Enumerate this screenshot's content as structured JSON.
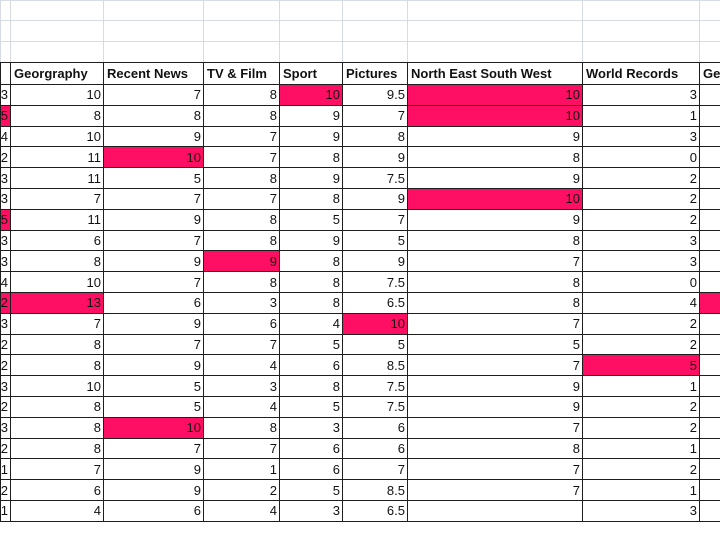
{
  "sheet": {
    "headers": [
      "",
      "Georgraphy",
      "Recent News",
      "TV & Film",
      "Sport",
      "Pictures",
      "North East South West",
      "World Records",
      "Ge"
    ],
    "rows": [
      [
        "3",
        "10",
        "7",
        "8",
        "10",
        "9.5",
        "10",
        "3",
        ""
      ],
      [
        "5",
        "8",
        "8",
        "8",
        "9",
        "7",
        "10",
        "1",
        ""
      ],
      [
        "4",
        "10",
        "9",
        "7",
        "9",
        "8",
        "9",
        "3",
        ""
      ],
      [
        "2",
        "11",
        "10",
        "7",
        "8",
        "9",
        "8",
        "0",
        ""
      ],
      [
        "3",
        "11",
        "5",
        "8",
        "9",
        "7.5",
        "9",
        "2",
        ""
      ],
      [
        "3",
        "7",
        "7",
        "7",
        "8",
        "9",
        "10",
        "2",
        ""
      ],
      [
        "5",
        "11",
        "9",
        "8",
        "5",
        "7",
        "9",
        "2",
        ""
      ],
      [
        "3",
        "6",
        "7",
        "8",
        "9",
        "5",
        "8",
        "3",
        ""
      ],
      [
        "3",
        "8",
        "9",
        "9",
        "8",
        "9",
        "7",
        "3",
        ""
      ],
      [
        "4",
        "10",
        "7",
        "8",
        "8",
        "7.5",
        "8",
        "0",
        ""
      ],
      [
        "2",
        "13",
        "6",
        "3",
        "8",
        "6.5",
        "8",
        "4",
        ""
      ],
      [
        "3",
        "7",
        "9",
        "6",
        "4",
        "10",
        "7",
        "2",
        ""
      ],
      [
        "2",
        "8",
        "7",
        "7",
        "5",
        "5",
        "5",
        "2",
        ""
      ],
      [
        "2",
        "8",
        "9",
        "4",
        "6",
        "8.5",
        "7",
        "5",
        ""
      ],
      [
        "3",
        "10",
        "5",
        "3",
        "8",
        "7.5",
        "9",
        "1",
        ""
      ],
      [
        "2",
        "8",
        "5",
        "4",
        "5",
        "7.5",
        "9",
        "2",
        ""
      ],
      [
        "3",
        "8",
        "10",
        "8",
        "3",
        "6",
        "7",
        "2",
        ""
      ],
      [
        "2",
        "8",
        "7",
        "7",
        "6",
        "6",
        "8",
        "1",
        ""
      ],
      [
        "1",
        "7",
        "9",
        "1",
        "6",
        "7",
        "7",
        "2",
        ""
      ],
      [
        "2",
        "6",
        "9",
        "2",
        "5",
        "8.5",
        "7",
        "1",
        ""
      ],
      [
        "1",
        "4",
        "6",
        "4",
        "3",
        "6.5",
        "",
        "3",
        ""
      ]
    ],
    "highlighted": [
      [
        0,
        4
      ],
      [
        0,
        6
      ],
      [
        1,
        0
      ],
      [
        1,
        6
      ],
      [
        3,
        2
      ],
      [
        5,
        6
      ],
      [
        6,
        0
      ],
      [
        8,
        3
      ],
      [
        10,
        0
      ],
      [
        10,
        1
      ],
      [
        10,
        8
      ],
      [
        11,
        5
      ],
      [
        13,
        7
      ],
      [
        16,
        2
      ]
    ],
    "highlight_color": "#ff0f63"
  }
}
